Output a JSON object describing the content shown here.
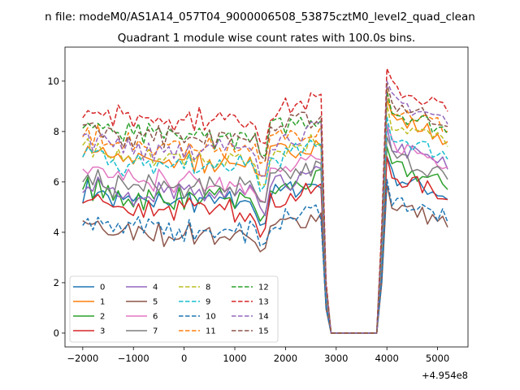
{
  "figure": {
    "suptitle": "n file: modeM0/AS1A14_057T04_9000006508_53875cztM0_level2_quad_clean",
    "title": "Quadrant 1 module wise count rates with 100.0s bins.",
    "x_offset_label": "+4.954e8"
  },
  "chart_data": {
    "type": "line",
    "title": "Quadrant 1 module wise count rates with 100.0s bins.",
    "xlabel": "",
    "ylabel": "",
    "x_offset": 495400000,
    "xlim": [
      -2350,
      5600
    ],
    "ylim": [
      -0.55,
      11.35
    ],
    "xticks": [
      -2000,
      -1000,
      0,
      1000,
      2000,
      3000,
      4000,
      5000
    ],
    "xtick_labels": [
      "−2000",
      "−1000",
      "0",
      "1000",
      "2000",
      "3000",
      "4000",
      "5000"
    ],
    "yticks": [
      0,
      2,
      4,
      6,
      8,
      10
    ],
    "ytick_labels": [
      "0",
      "2",
      "4",
      "6",
      "8",
      "10"
    ],
    "grid": false,
    "legend_position": "lower-left",
    "legend_columns": 4,
    "series": [
      {
        "name": "0",
        "color": "#1f77b4",
        "dashed": false,
        "base": 5.3,
        "post": 5.9
      },
      {
        "name": "1",
        "color": "#ff7f0e",
        "dashed": false,
        "base": 6.9,
        "post": 8.2
      },
      {
        "name": "2",
        "color": "#2ca02c",
        "dashed": false,
        "base": 5.4,
        "post": 6.3
      },
      {
        "name": "3",
        "color": "#d62728",
        "dashed": false,
        "base": 5.0,
        "post": 5.9
      },
      {
        "name": "4",
        "color": "#9467bd",
        "dashed": false,
        "base": 5.6,
        "post": 7.1
      },
      {
        "name": "5",
        "color": "#8c564b",
        "dashed": false,
        "base": 4.0,
        "post": 4.8
      },
      {
        "name": "6",
        "color": "#e377c2",
        "dashed": false,
        "base": 6.1,
        "post": 7.2
      },
      {
        "name": "7",
        "color": "#7f7f7f",
        "dashed": false,
        "base": 5.9,
        "post": 6.7
      },
      {
        "name": "8",
        "color": "#bcbd22",
        "dashed": true,
        "base": 7.0,
        "post": 8.0
      },
      {
        "name": "9",
        "color": "#17becf",
        "dashed": true,
        "base": 6.7,
        "post": 7.5
      },
      {
        "name": "10",
        "color": "#1f77b4",
        "dashed": true,
        "base": 4.2,
        "post": 5.0
      },
      {
        "name": "11",
        "color": "#ff7f0e",
        "dashed": true,
        "base": 7.5,
        "post": 8.6
      },
      {
        "name": "12",
        "color": "#2ca02c",
        "dashed": true,
        "base": 7.9,
        "post": 8.5
      },
      {
        "name": "13",
        "color": "#d62728",
        "dashed": true,
        "base": 8.6,
        "post": 9.4
      },
      {
        "name": "14",
        "color": "#9467bd",
        "dashed": true,
        "base": 7.4,
        "post": 8.9
      },
      {
        "name": "15",
        "color": "#8c564b",
        "dashed": true,
        "base": 7.9,
        "post": 8.8
      }
    ]
  }
}
